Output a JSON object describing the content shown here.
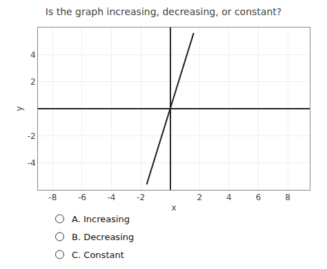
{
  "chart_data": {
    "type": "line",
    "title": "Is the graph increasing, decreasing, or constant?",
    "x_label": "x",
    "y_label": "y",
    "x": [
      -1.6,
      1.6
    ],
    "values": [
      -5.6,
      5.6
    ],
    "color": "#222222",
    "xlim": [
      -9,
      9.5
    ],
    "ylim": [
      -6,
      6
    ],
    "xticks": [
      -8,
      -6,
      -4,
      -2,
      2,
      4,
      6,
      8
    ],
    "yticks": [
      -4,
      -2,
      2,
      4
    ],
    "grid": true,
    "annotations": [
      "A. Increasing",
      "B. Decreasing",
      "C. Constant"
    ]
  }
}
